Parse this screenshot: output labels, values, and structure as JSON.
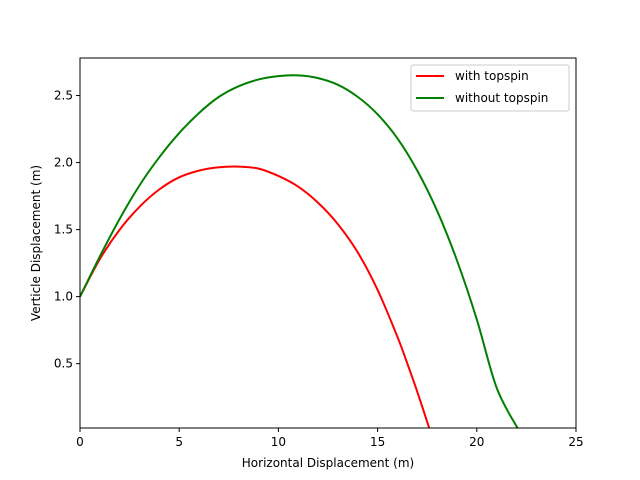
{
  "chart_data": {
    "type": "line",
    "title": "",
    "xlabel": "Horizontal Displacement (m)",
    "ylabel": "Verticle Displacement (m)",
    "xlim": [
      0,
      25
    ],
    "ylim": [
      0.02,
      2.78
    ],
    "xticks": [
      "0",
      "5",
      "10",
      "15",
      "20",
      "25"
    ],
    "yticks": [
      "0.5",
      "1.0",
      "1.5",
      "2.0",
      "2.5"
    ],
    "grid": false,
    "legend_position": "top-right",
    "series": [
      {
        "name": "with topspin",
        "color": "#ff0000",
        "points": [
          [
            0,
            1.0
          ],
          [
            1,
            1.28
          ],
          [
            2,
            1.5
          ],
          [
            3,
            1.67
          ],
          [
            4,
            1.8
          ],
          [
            5,
            1.89
          ],
          [
            6,
            1.94
          ],
          [
            7,
            1.965
          ],
          [
            8,
            1.97
          ],
          [
            9,
            1.955
          ],
          [
            10,
            1.9
          ],
          [
            11,
            1.82
          ],
          [
            12,
            1.7
          ],
          [
            13,
            1.54
          ],
          [
            14,
            1.33
          ],
          [
            15,
            1.05
          ],
          [
            16,
            0.7
          ],
          [
            16.5,
            0.5
          ],
          [
            17,
            0.29
          ],
          [
            17.6,
            0.02
          ]
        ]
      },
      {
        "name": "without topspin",
        "color": "#008000",
        "points": [
          [
            0,
            1.0
          ],
          [
            1,
            1.3
          ],
          [
            2,
            1.58
          ],
          [
            3,
            1.83
          ],
          [
            4,
            2.04
          ],
          [
            5,
            2.22
          ],
          [
            6,
            2.37
          ],
          [
            7,
            2.49
          ],
          [
            8,
            2.57
          ],
          [
            9,
            2.62
          ],
          [
            10,
            2.645
          ],
          [
            11,
            2.65
          ],
          [
            12,
            2.63
          ],
          [
            13,
            2.58
          ],
          [
            14,
            2.49
          ],
          [
            15,
            2.36
          ],
          [
            16,
            2.18
          ],
          [
            17,
            1.94
          ],
          [
            18,
            1.64
          ],
          [
            19,
            1.27
          ],
          [
            20,
            0.83
          ],
          [
            21,
            0.32
          ],
          [
            22.05,
            0.02
          ]
        ]
      }
    ]
  }
}
